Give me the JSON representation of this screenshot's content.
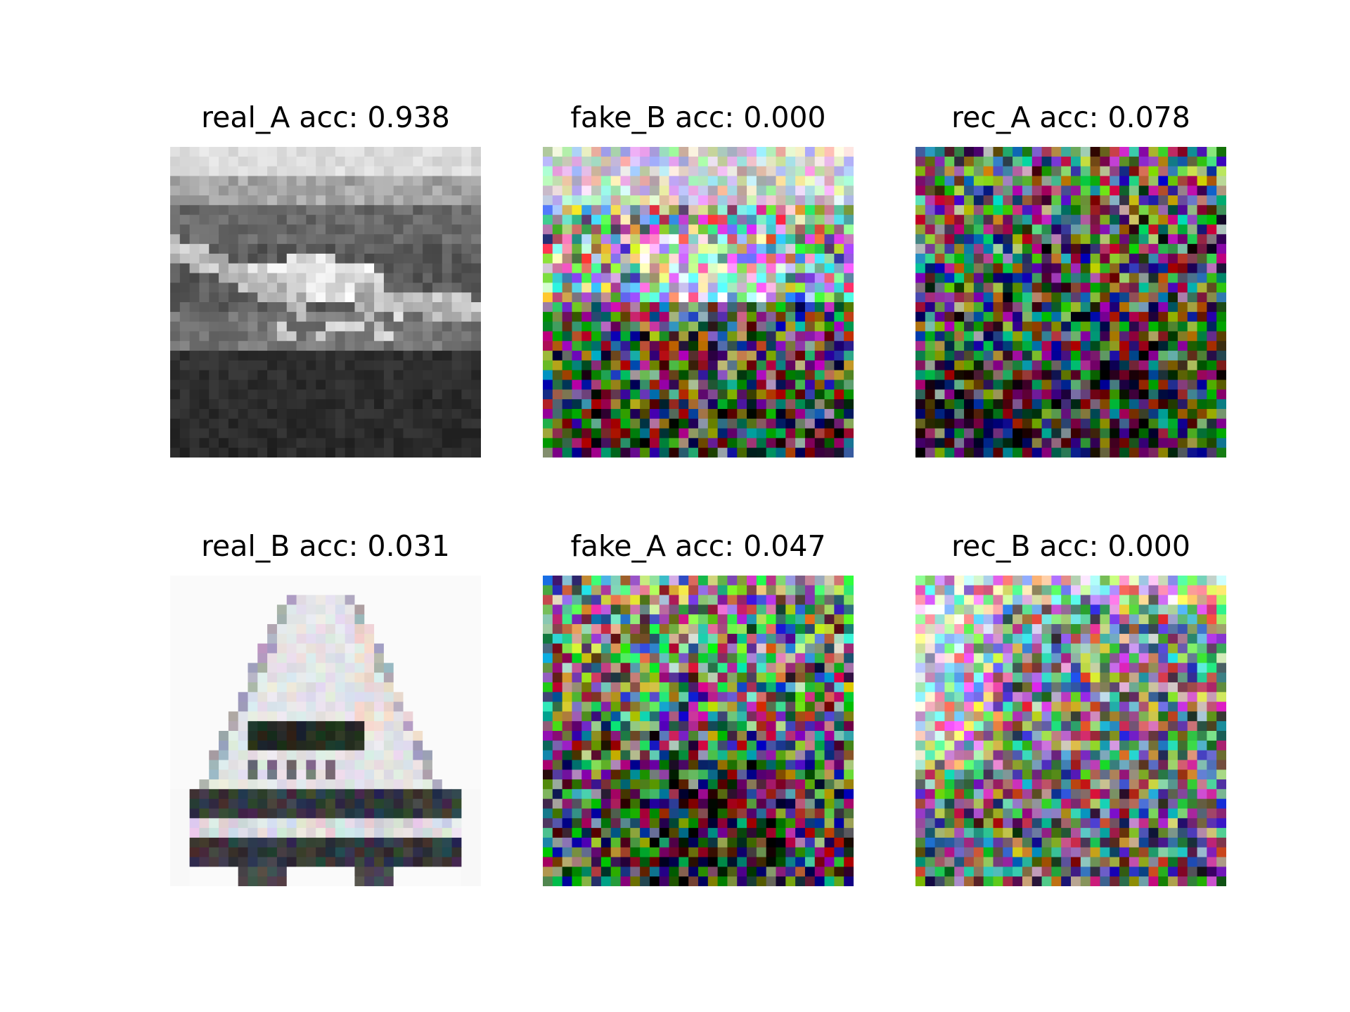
{
  "panels": [
    {
      "title": "real_A acc: 0.938",
      "picture": "grayscale-pixelated-cat-on-ledge"
    },
    {
      "title": "fake_B acc: 0.000",
      "picture": "colored-noise-bright-top"
    },
    {
      "title": "rec_A acc: 0.078",
      "picture": "colored-noise-dark"
    },
    {
      "title": "real_B acc: 0.031",
      "picture": "pixelated-white-truck-on-white-background"
    },
    {
      "title": "fake_A acc: 0.047",
      "picture": "colored-noise-dark-bottom"
    },
    {
      "title": "rec_B acc: 0.000",
      "picture": "colored-noise-light-left"
    }
  ]
}
